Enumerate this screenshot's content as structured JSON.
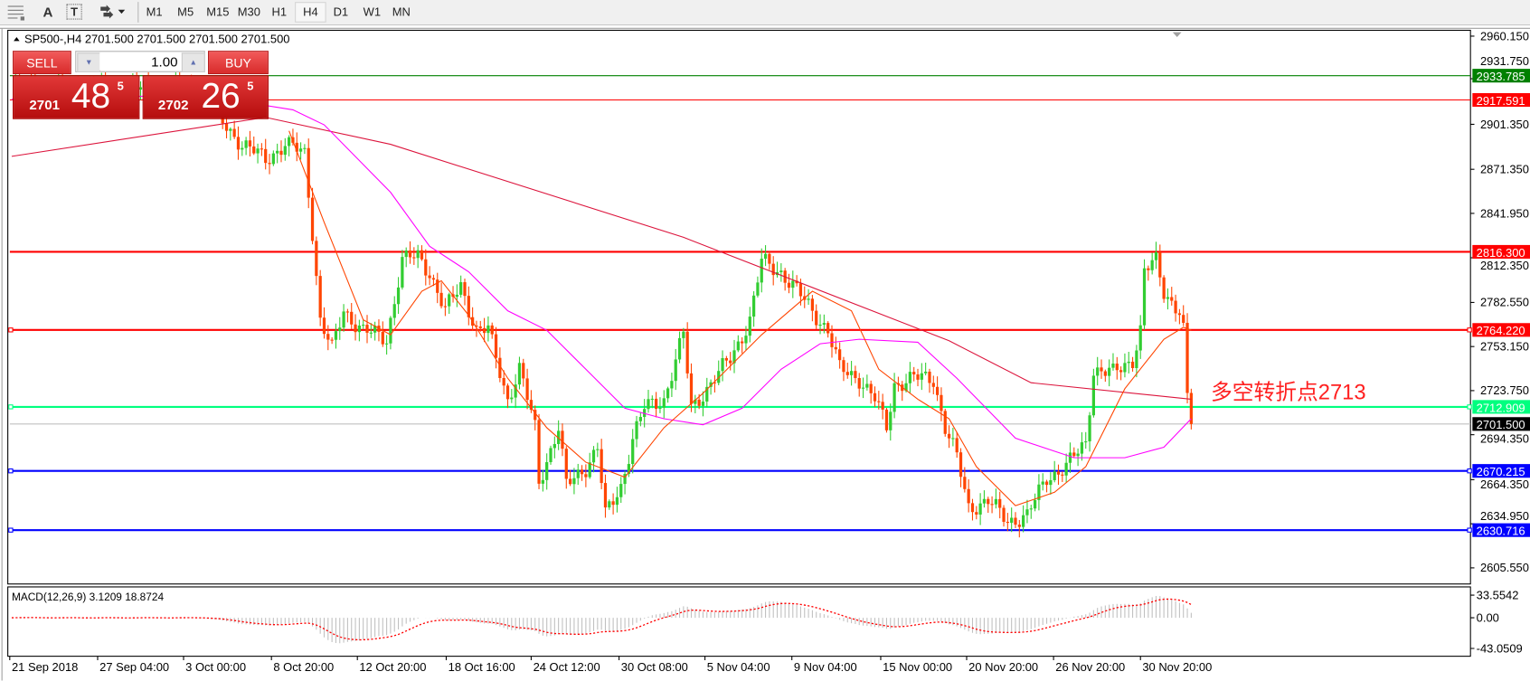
{
  "toolbar": {
    "icons": [
      "period-separator-icon",
      "text-label-icon",
      "text-box-icon",
      "arrows-icon"
    ],
    "text_icon_label": "A",
    "textbox_icon_label": "T",
    "timeframes": [
      "M1",
      "M5",
      "M15",
      "M30",
      "H1",
      "H4",
      "D1",
      "W1",
      "MN"
    ],
    "active_timeframe": "H4"
  },
  "chart": {
    "header": "SP500-,H4  2701.500 2701.500 2701.500 2701.500",
    "annotation": "多空转折点2713",
    "colors": {
      "bull": "#32cd32",
      "bear": "#ff4500",
      "ma_fast": "#ff4500",
      "ma_mid": "#ff00ff",
      "ma_slow": "#dc143c",
      "macd_hist": "#c0c0c0",
      "macd_signal": "#ff0000"
    }
  },
  "trade_panel": {
    "sell_label": "SELL",
    "buy_label": "BUY",
    "lot": "1.00",
    "sell_price": {
      "prefix": "2701",
      "big": "48",
      "sup": "5"
    },
    "buy_price": {
      "prefix": "2702",
      "big": "26",
      "sup": "5"
    }
  },
  "price_axis": {
    "ticks": [
      "2960.150",
      "2931.750",
      "2901.350",
      "2871.350",
      "2841.950",
      "2812.350",
      "2782.550",
      "2753.150",
      "2723.750",
      "2694.350",
      "2664.350",
      "2634.950",
      "2605.550"
    ],
    "range": [
      2605.55,
      2960.15
    ]
  },
  "levels": [
    {
      "price": "2933.785",
      "color": "#008000",
      "width": 1
    },
    {
      "price": "2917.591",
      "color": "#ff0000",
      "width": 1
    },
    {
      "price": "2816.300",
      "color": "#ff0000",
      "width": 2
    },
    {
      "price": "2764.220",
      "color": "#ff0000",
      "width": 2
    },
    {
      "price": "2712.909",
      "color": "#00ff7f",
      "width": 2
    },
    {
      "price": "2670.215",
      "color": "#0000ff",
      "width": 2
    },
    {
      "price": "2630.716",
      "color": "#0000ff",
      "width": 2
    }
  ],
  "current_price": "2701.500",
  "time_axis": [
    "21 Sep 2018",
    "27 Sep 04:00",
    "3 Oct 00:00",
    "8 Oct 20:00",
    "12 Oct 20:00",
    "18 Oct 16:00",
    "24 Oct 12:00",
    "30 Oct 08:00",
    "5 Nov 04:00",
    "9 Nov 04:00",
    "15 Nov 00:00",
    "20 Nov 20:00",
    "26 Nov 20:00",
    "30 Nov 20:00"
  ],
  "macd": {
    "label": "MACD(12,26,9) 3.1209 18.8724",
    "ticks": [
      "33.5542",
      "0.00",
      "-43.0509"
    ],
    "range": [
      -43.0509,
      33.5542
    ]
  },
  "chart_data": {
    "type": "candlestick",
    "symbol": "SP500-",
    "timeframe": "H4",
    "close_path": [
      [
        1,
        2925
      ],
      [
        48,
        2925
      ],
      [
        54,
        2903
      ],
      [
        59,
        2888
      ],
      [
        65,
        2878
      ],
      [
        70,
        2888
      ],
      [
        75,
        2882
      ],
      [
        77,
        2830
      ],
      [
        79,
        2771
      ],
      [
        82,
        2751
      ],
      [
        85,
        2777
      ],
      [
        90,
        2764
      ],
      [
        96,
        2758
      ],
      [
        100,
        2811
      ],
      [
        104,
        2813
      ],
      [
        107,
        2803
      ],
      [
        111,
        2777
      ],
      [
        115,
        2794
      ],
      [
        119,
        2764
      ],
      [
        122,
        2764
      ],
      [
        127,
        2718
      ],
      [
        130,
        2738
      ],
      [
        134,
        2699
      ],
      [
        135,
        2663
      ],
      [
        140,
        2699
      ],
      [
        142,
        2660
      ],
      [
        147,
        2673
      ],
      [
        150,
        2686
      ],
      [
        152,
        2640
      ],
      [
        156,
        2660
      ],
      [
        159,
        2692
      ],
      [
        162,
        2712
      ],
      [
        167,
        2718
      ],
      [
        172,
        2761
      ],
      [
        174,
        2712
      ],
      [
        177,
        2722
      ],
      [
        184,
        2745
      ],
      [
        189,
        2771
      ],
      [
        192,
        2810
      ],
      [
        197,
        2803
      ],
      [
        202,
        2787
      ],
      [
        209,
        2764
      ],
      [
        212,
        2738
      ],
      [
        217,
        2732
      ],
      [
        221,
        2718
      ],
      [
        224,
        2699
      ],
      [
        226,
        2728
      ],
      [
        231,
        2732
      ],
      [
        236,
        2732
      ],
      [
        239,
        2699
      ],
      [
        242,
        2679
      ],
      [
        245,
        2646
      ],
      [
        250,
        2650
      ],
      [
        255,
        2637
      ],
      [
        260,
        2640
      ],
      [
        265,
        2666
      ],
      [
        270,
        2673
      ],
      [
        275,
        2689
      ],
      [
        277,
        2738
      ],
      [
        282,
        2735
      ],
      [
        287,
        2745
      ],
      [
        289,
        2764
      ],
      [
        290,
        2803
      ],
      [
        293,
        2810
      ],
      [
        295,
        2790
      ],
      [
        299,
        2777
      ],
      [
        300,
        2764
      ],
      [
        301,
        2718
      ],
      [
        302,
        2701.5
      ]
    ],
    "ma_fast": [
      [
        71,
        2897
      ],
      [
        80,
        2836
      ],
      [
        90,
        2771
      ],
      [
        97,
        2761
      ],
      [
        105,
        2790
      ],
      [
        110,
        2797
      ],
      [
        117,
        2774
      ],
      [
        127,
        2732
      ],
      [
        137,
        2699
      ],
      [
        147,
        2676
      ],
      [
        157,
        2666
      ],
      [
        167,
        2699
      ],
      [
        177,
        2722
      ],
      [
        192,
        2761
      ],
      [
        205,
        2790
      ],
      [
        215,
        2777
      ],
      [
        222,
        2738
      ],
      [
        232,
        2718
      ],
      [
        240,
        2705
      ],
      [
        247,
        2673
      ],
      [
        257,
        2647
      ],
      [
        267,
        2656
      ],
      [
        275,
        2673
      ],
      [
        285,
        2725
      ],
      [
        295,
        2758
      ],
      [
        300,
        2766
      ],
      [
        302,
        2764
      ]
    ],
    "ma_mid": [
      [
        0,
        2918
      ],
      [
        48,
        2921
      ],
      [
        72,
        2911
      ],
      [
        80,
        2901
      ],
      [
        97,
        2856
      ],
      [
        107,
        2820
      ],
      [
        117,
        2803
      ],
      [
        127,
        2777
      ],
      [
        137,
        2764
      ],
      [
        147,
        2738
      ],
      [
        157,
        2712
      ],
      [
        167,
        2705
      ],
      [
        177,
        2701
      ],
      [
        187,
        2712
      ],
      [
        197,
        2738
      ],
      [
        207,
        2755
      ],
      [
        217,
        2758
      ],
      [
        232,
        2756
      ],
      [
        242,
        2732
      ],
      [
        257,
        2692
      ],
      [
        272,
        2679
      ],
      [
        285,
        2679
      ],
      [
        295,
        2686
      ],
      [
        302,
        2705
      ]
    ],
    "ma_slow": [
      [
        0,
        2880
      ],
      [
        65,
        2906
      ],
      [
        97,
        2888
      ],
      [
        172,
        2826
      ],
      [
        240,
        2757
      ],
      [
        261,
        2729
      ],
      [
        302,
        2718
      ]
    ]
  }
}
